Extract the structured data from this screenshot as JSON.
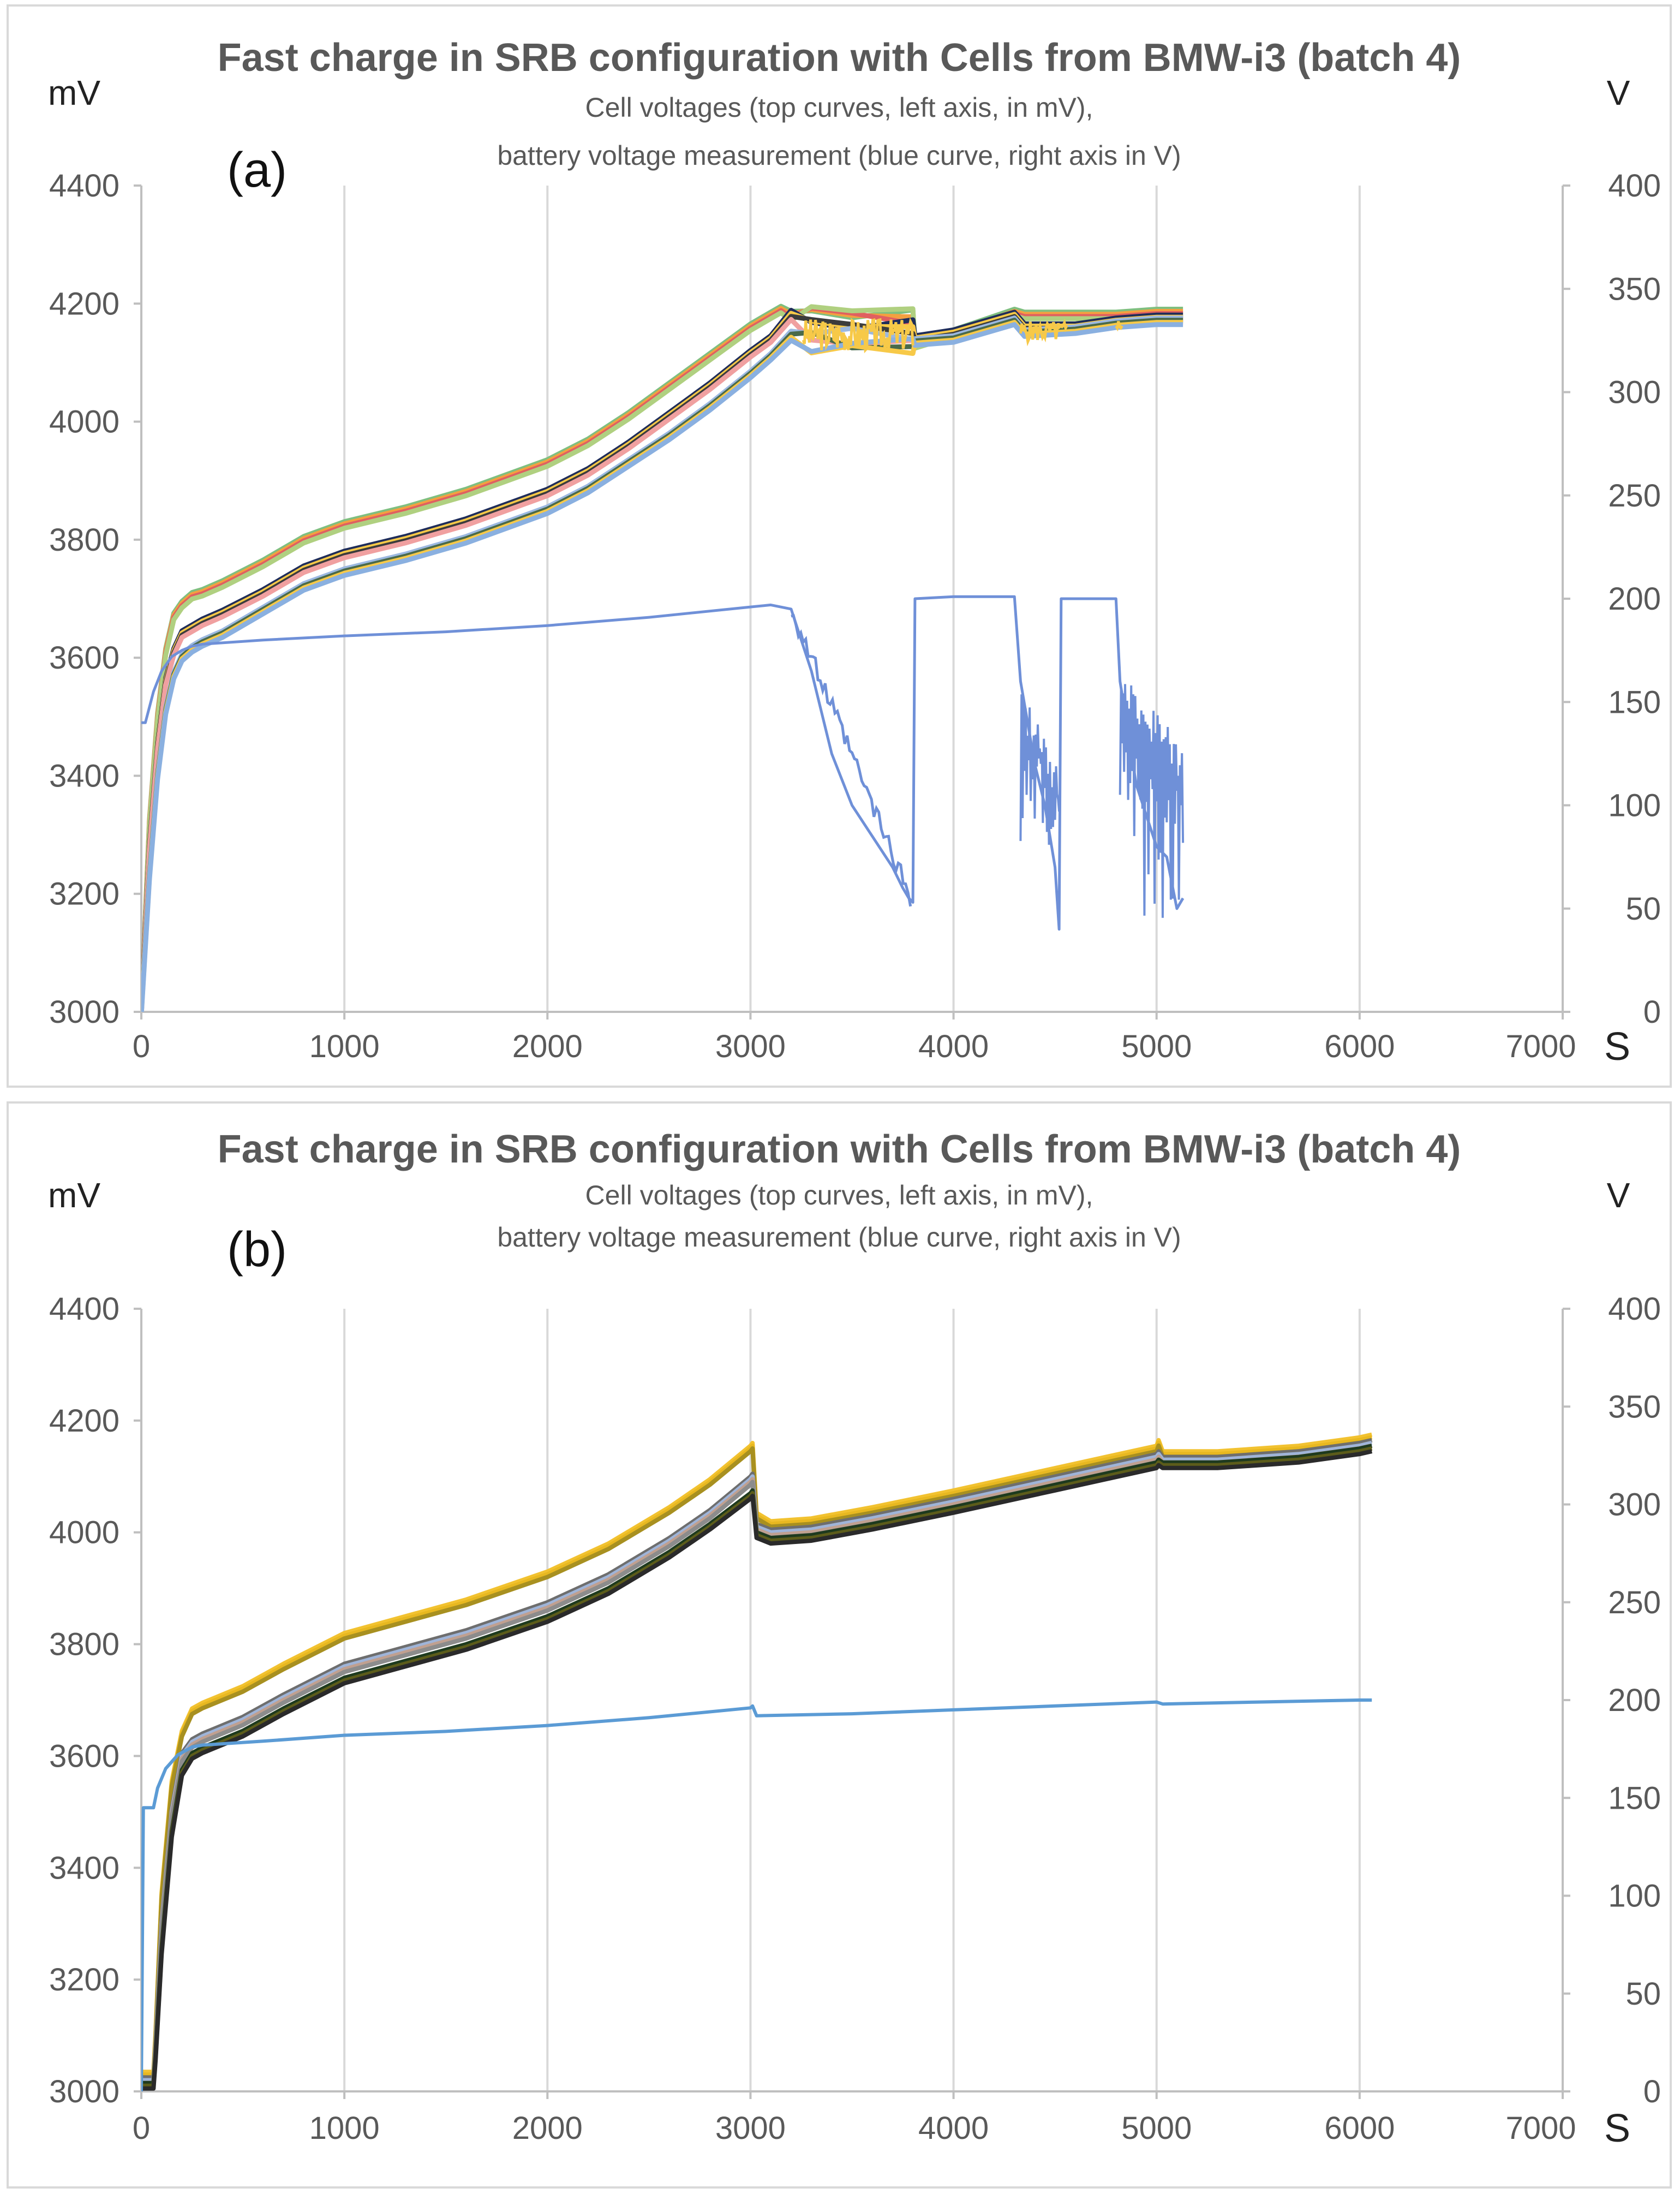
{
  "chart_data": [
    {
      "type": "line",
      "panel_label": "(a)",
      "title": "Fast charge in SRB configuration  with Cells from BMW-i3 (batch 4)",
      "subtitle_lines": [
        "Cell voltages (top curves, left axis, in mV),",
        "battery voltage measurement (blue curve, right axis in V)"
      ],
      "left_axis_unit": "mV",
      "right_axis_unit": "V",
      "x_axis_unit": "S",
      "xlim": [
        0,
        7000
      ],
      "ylim_left": [
        3000,
        4400
      ],
      "ylim_right": [
        0,
        400
      ],
      "x_ticks": [
        0,
        1000,
        2000,
        3000,
        4000,
        5000,
        6000,
        7000
      ],
      "y_ticks_left": [
        3000,
        3200,
        3400,
        3600,
        3800,
        4000,
        4200,
        4400
      ],
      "y_ticks_right": [
        0,
        50,
        100,
        150,
        200,
        250,
        300,
        350,
        400
      ],
      "grid": "vertical",
      "colors": {
        "cell_high": "#7fbf7f",
        "cell_high2": "#f4a040",
        "cell_mid": "#1f2d5a",
        "cell_low": "#9bb8e0",
        "cell_yellow": "#f7c948",
        "battery": "#6f90d8"
      },
      "series": [
        {
          "name": "Cell voltage (upper band)",
          "axis": "left",
          "x": [
            0,
            40,
            80,
            120,
            160,
            200,
            250,
            300,
            400,
            600,
            800,
            1000,
            1300,
            1600,
            2000,
            2200,
            2400,
            2600,
            2800,
            3000,
            3100,
            3150,
            3200,
            3300,
            3500,
            3800,
            3810,
            4000,
            4300,
            4350,
            4600,
            4800,
            5000,
            5130
          ],
          "y": [
            3000,
            3320,
            3500,
            3610,
            3670,
            3690,
            3705,
            3710,
            3725,
            3760,
            3800,
            3825,
            3850,
            3880,
            3930,
            3965,
            4010,
            4060,
            4110,
            4160,
            4180,
            4190,
            4190,
            4185,
            4185,
            4185,
            4130,
            4150,
            4185,
            4180,
            4180,
            4180,
            4185,
            4185
          ]
        },
        {
          "name": "Cell voltage (middle band)",
          "axis": "left",
          "x": [
            0,
            40,
            80,
            120,
            160,
            200,
            250,
            300,
            400,
            600,
            800,
            1000,
            1300,
            1600,
            2000,
            2200,
            2400,
            2600,
            2800,
            3000,
            3100,
            3200,
            3300,
            3500,
            3800,
            3810,
            4000,
            4300,
            4350,
            4600,
            4800,
            5000,
            5130
          ],
          "y": [
            3000,
            3280,
            3450,
            3560,
            3610,
            3640,
            3650,
            3660,
            3675,
            3710,
            3750,
            3775,
            3800,
            3830,
            3880,
            3915,
            3960,
            4010,
            4060,
            4115,
            4140,
            4165,
            4160,
            4150,
            4150,
            4140,
            4150,
            4180,
            4160,
            4160,
            4170,
            4175,
            4175
          ]
        },
        {
          "name": "Cell voltage (lower band)",
          "axis": "left",
          "x": [
            0,
            40,
            80,
            120,
            160,
            200,
            250,
            300,
            400,
            600,
            800,
            1000,
            1300,
            1600,
            2000,
            2200,
            2400,
            2600,
            2800,
            3000,
            3100,
            3200,
            3300,
            3500,
            3800,
            3810,
            4000,
            4300,
            4350,
            4600,
            4800,
            5000,
            5130
          ],
          "y": [
            3000,
            3230,
            3400,
            3510,
            3570,
            3600,
            3615,
            3625,
            3640,
            3680,
            3720,
            3745,
            3770,
            3800,
            3850,
            3885,
            3930,
            3975,
            4025,
            4080,
            4110,
            4140,
            4135,
            4135,
            4135,
            4135,
            4140,
            4170,
            4150,
            4155,
            4165,
            4170,
            4170
          ]
        },
        {
          "name": "Battery voltage",
          "axis": "right",
          "x": [
            0,
            20,
            60,
            100,
            150,
            200,
            250,
            300,
            600,
            1000,
            1500,
            2000,
            2500,
            3000,
            3100,
            3200,
            3300,
            3400,
            3500,
            3600,
            3700,
            3750,
            3780,
            3800,
            3810,
            4000,
            4300,
            4330,
            4400,
            4450,
            4500,
            4520,
            4530,
            4540,
            4800,
            4820,
            4900,
            5000,
            5050,
            5100,
            5130
          ],
          "y": [
            140,
            140,
            155,
            165,
            172,
            175,
            177,
            178,
            180,
            182,
            184,
            187,
            191,
            196,
            197,
            195,
            165,
            125,
            100,
            85,
            70,
            60,
            55,
            53,
            200,
            201,
            201,
            160,
            120,
            100,
            70,
            40,
            200,
            200,
            200,
            160,
            110,
            80,
            75,
            50,
            55
          ]
        }
      ]
    },
    {
      "type": "line",
      "panel_label": "(b)",
      "title": "Fast charge in SRB configuration  with Cells from BMW-i3 (batch 4)",
      "subtitle_lines": [
        "Cell voltages (top curves, left axis, in mV),",
        "battery voltage measurement (blue curve, right axis in V)"
      ],
      "left_axis_unit": "mV",
      "right_axis_unit": "V",
      "x_axis_unit": "S",
      "xlim": [
        0,
        7000
      ],
      "ylim_left": [
        3000,
        4400
      ],
      "ylim_right": [
        0,
        400
      ],
      "x_ticks": [
        0,
        1000,
        2000,
        3000,
        4000,
        5000,
        6000,
        7000
      ],
      "y_ticks_left": [
        3000,
        3200,
        3400,
        3600,
        3800,
        4000,
        4200,
        4400
      ],
      "y_ticks_right": [
        0,
        50,
        100,
        150,
        200,
        250,
        300,
        350,
        400
      ],
      "grid": "vertical",
      "colors": {
        "cell_high": "#f2c230",
        "cell_mid": "#6e6e6e",
        "cell_light": "#9fb4d8",
        "cell_low": "#1e3a1e",
        "cell_low2": "#5c5c1a",
        "battery": "#5b9bd5"
      },
      "series": [
        {
          "name": "Cell voltage (upper band)",
          "axis": "left",
          "x": [
            0,
            60,
            70,
            100,
            150,
            200,
            250,
            300,
            500,
            700,
            1000,
            1300,
            1600,
            2000,
            2300,
            2600,
            2800,
            3000,
            3010,
            3030,
            3100,
            3300,
            3600,
            4000,
            4500,
            5000,
            5010,
            5030,
            5300,
            5700,
            6000,
            6060
          ],
          "y": [
            3030,
            3030,
            3100,
            3350,
            3550,
            3640,
            3680,
            3690,
            3720,
            3760,
            3815,
            3845,
            3875,
            3925,
            3975,
            4040,
            4090,
            4150,
            4155,
            4030,
            4015,
            4020,
            4040,
            4070,
            4110,
            4150,
            4160,
            4140,
            4140,
            4150,
            4165,
            4170
          ]
        },
        {
          "name": "Cell voltage (middle band)",
          "axis": "left",
          "x": [
            0,
            60,
            70,
            100,
            150,
            200,
            250,
            300,
            500,
            700,
            1000,
            1300,
            1600,
            2000,
            2300,
            2600,
            2800,
            3000,
            3010,
            3030,
            3100,
            3300,
            3600,
            4000,
            4500,
            5000,
            5010,
            5030,
            5300,
            5700,
            6000,
            6060
          ],
          "y": [
            3020,
            3020,
            3080,
            3300,
            3500,
            3600,
            3625,
            3635,
            3665,
            3705,
            3760,
            3790,
            3820,
            3870,
            3920,
            3985,
            4035,
            4095,
            4100,
            4010,
            4000,
            4005,
            4025,
            4055,
            4095,
            4135,
            4140,
            4130,
            4130,
            4140,
            4155,
            4160
          ]
        },
        {
          "name": "Cell voltage (lower band)",
          "axis": "left",
          "x": [
            0,
            60,
            70,
            100,
            150,
            200,
            250,
            300,
            500,
            700,
            1000,
            1300,
            1600,
            2000,
            2300,
            2600,
            2800,
            3000,
            3010,
            3030,
            3100,
            3300,
            3600,
            4000,
            4500,
            5000,
            5010,
            5030,
            5300,
            5700,
            6000,
            6060
          ],
          "y": [
            3010,
            3010,
            3060,
            3250,
            3460,
            3570,
            3600,
            3610,
            3640,
            3680,
            3735,
            3765,
            3795,
            3845,
            3895,
            3960,
            4010,
            4065,
            4070,
            3995,
            3985,
            3990,
            4010,
            4040,
            4080,
            4120,
            4125,
            4120,
            4120,
            4130,
            4145,
            4150
          ]
        },
        {
          "name": "Battery voltage",
          "axis": "right",
          "x": [
            0,
            10,
            60,
            80,
            120,
            180,
            250,
            300,
            600,
            1000,
            1500,
            2000,
            2500,
            3000,
            3010,
            3030,
            3500,
            4000,
            4500,
            5000,
            5030,
            5500,
            6000,
            6060
          ],
          "y": [
            0,
            145,
            145,
            155,
            165,
            172,
            176,
            177,
            179,
            182,
            184,
            187,
            191,
            196,
            197,
            192,
            193,
            195,
            197,
            199,
            198,
            199,
            200,
            200
          ]
        }
      ]
    }
  ]
}
